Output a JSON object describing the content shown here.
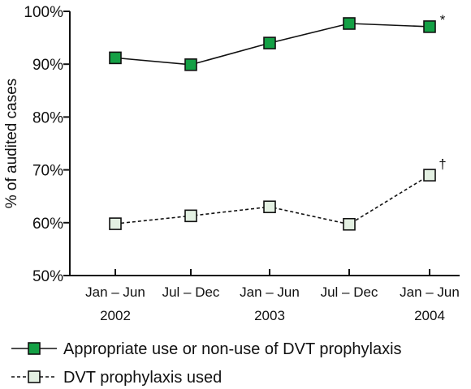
{
  "chart_data": {
    "type": "line",
    "title": "",
    "xlabel": "",
    "ylabel": "% of audited cases",
    "ylim": [
      50,
      100
    ],
    "yticks": [
      "50%",
      "60%",
      "70%",
      "80%",
      "90%",
      "100%"
    ],
    "categories": [
      "Jan – Jun",
      "Jul – Dec",
      "Jan – Jun",
      "Jul – Dec",
      "Jan – Jun"
    ],
    "years": [
      {
        "label": "2002",
        "after_category": 0
      },
      {
        "label": "2003",
        "after_category": 2
      },
      {
        "label": "2004",
        "after_category": 4
      }
    ],
    "series": [
      {
        "name": "Appropriate use or non-use of DVT prophylaxis",
        "values": [
          91.2,
          89.9,
          94.0,
          97.7,
          97.1
        ],
        "color": "#14a045",
        "line_style": "solid",
        "marker": "square",
        "end_marker": "*"
      },
      {
        "name": "DVT prophylaxis used",
        "values": [
          59.8,
          61.3,
          63.0,
          59.7,
          69.0
        ],
        "color": "#e3f0e2",
        "line_style": "dashed",
        "marker": "square",
        "end_marker": "†"
      }
    ],
    "grid": false,
    "legend": "bottom-left"
  }
}
